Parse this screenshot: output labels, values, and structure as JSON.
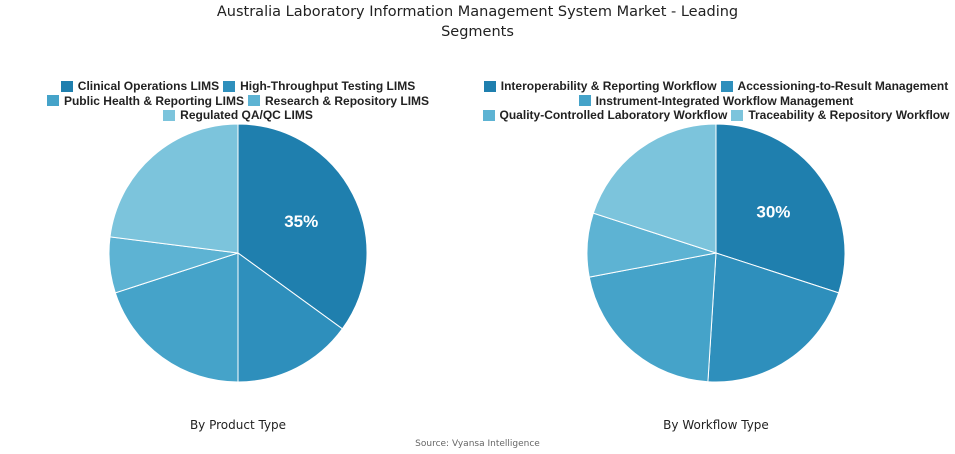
{
  "title": "Australia Laboratory Information Management System Market - Leading Segments",
  "title_lines": [
    "Australia Laboratory Information Management System Market - Leading",
    "Segments"
  ],
  "source": "Source: Vyansa Intelligence",
  "colors": [
    "#1f7fae",
    "#2e8fbc",
    "#45a3c9",
    "#5db3d3",
    "#7cc4dc"
  ],
  "chart_data": [
    {
      "type": "pie",
      "subtitle": "By Product Type",
      "categories": [
        "Clinical Operations LIMS",
        "High-Throughput Testing LIMS",
        "Public Health & Reporting LIMS",
        "Research & Repository LIMS",
        "Regulated QA/QC LIMS"
      ],
      "values": [
        35,
        15,
        20,
        7,
        23
      ],
      "data_labels": [
        "35%",
        "",
        "",
        "",
        ""
      ],
      "legend_rows": [
        [
          0,
          1
        ],
        [
          2,
          3
        ],
        [
          4
        ]
      ],
      "legend": "top"
    },
    {
      "type": "pie",
      "subtitle": "By Workflow Type",
      "categories": [
        "Interoperability & Reporting Workflow",
        "Accessioning-to-Result Management",
        "Instrument-Integrated Workflow Management",
        "Quality-Controlled Laboratory Workflow",
        "Traceability & Repository Workflow"
      ],
      "values": [
        30,
        21,
        21,
        8,
        20
      ],
      "data_labels": [
        "30%",
        "",
        "",
        "",
        ""
      ],
      "legend_rows": [
        [
          0,
          1
        ],
        [
          2
        ],
        [
          3,
          4
        ]
      ],
      "legend": "top"
    }
  ]
}
